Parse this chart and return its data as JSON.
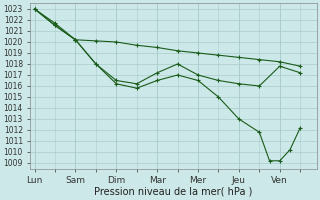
{
  "background_color": "#cce8e8",
  "grid_color": "#aacccc",
  "line_color": "#1a5c1a",
  "xlabel": "Pression niveau de la mer( hPa )",
  "xtick_labels": [
    "Lun",
    "Sam",
    "Dim",
    "Mar",
    "Mer",
    "Jeu",
    "Ven"
  ],
  "ylim": [
    1008.5,
    1023.5
  ],
  "ytick_min": 1009,
  "ytick_max": 1023,
  "x_tick_positions": [
    0,
    1,
    2,
    3,
    4,
    5,
    6
  ],
  "xlim": [
    -0.1,
    6.9
  ],
  "line_a_x": [
    0,
    0.5,
    1.0,
    1.5,
    2.0,
    2.5,
    3.0,
    3.5,
    4.0,
    4.5,
    5.0,
    5.5,
    6.0,
    6.5
  ],
  "line_a_y": [
    1023.0,
    1021.7,
    1020.2,
    1020.1,
    1020.0,
    1019.7,
    1019.5,
    1019.2,
    1019.0,
    1018.8,
    1018.6,
    1018.4,
    1018.2,
    1017.8
  ],
  "line_b_x": [
    0,
    0.5,
    1.0,
    1.5,
    2.0,
    2.5,
    3.0,
    3.5,
    4.0,
    4.5,
    5.0,
    5.5,
    6.0,
    6.5
  ],
  "line_b_y": [
    1023.0,
    1021.5,
    1020.2,
    1018.0,
    1016.5,
    1016.2,
    1017.2,
    1018.0,
    1017.0,
    1016.5,
    1016.2,
    1016.0,
    1017.8,
    1017.2
  ],
  "line_c_x": [
    0,
    0.5,
    1.0,
    1.5,
    2.0,
    2.5,
    3.0,
    3.5,
    4.0,
    4.5,
    5.0,
    5.5,
    5.75,
    6.0,
    6.25,
    6.5
  ],
  "line_c_y": [
    1023.0,
    1021.5,
    1020.2,
    1018.0,
    1016.2,
    1015.8,
    1016.5,
    1017.0,
    1016.5,
    1015.0,
    1013.0,
    1011.8,
    1009.2,
    1009.2,
    1010.2,
    1012.2
  ]
}
